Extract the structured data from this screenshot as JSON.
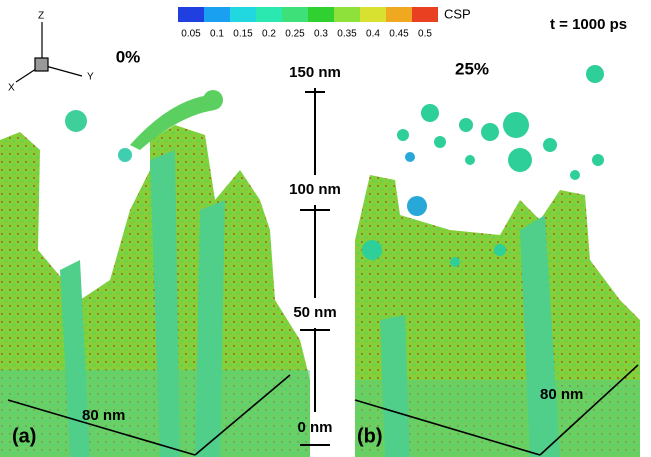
{
  "colorbar": {
    "title": "CSP",
    "ticks": [
      "0.05",
      "0.1",
      "0.15",
      "0.2",
      "0.25",
      "0.3",
      "0.35",
      "0.4",
      "0.45",
      "0.5"
    ]
  },
  "time": "t = 1000 ps",
  "axes": {
    "z": "Z",
    "y": "Y",
    "x": "X"
  },
  "panels": [
    {
      "label": "(a)",
      "fraction": "0%",
      "width": "80 nm"
    },
    {
      "label": "(b)",
      "fraction": "25%",
      "width": "80 nm"
    }
  ],
  "scale": [
    "150 nm",
    "100 nm",
    "50 nm",
    "0 nm"
  ]
}
